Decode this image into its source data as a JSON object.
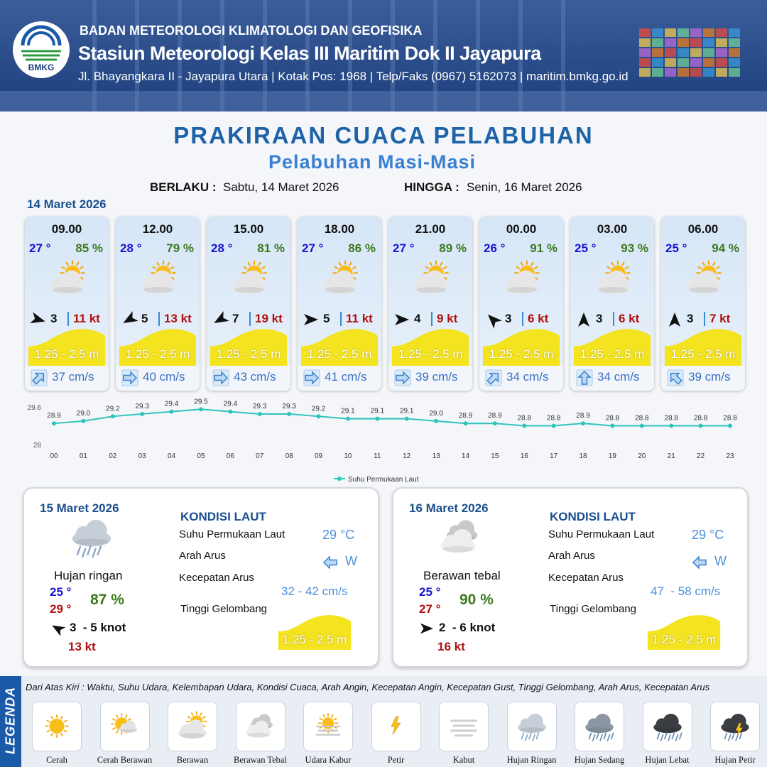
{
  "header": {
    "logo_text": "BMKG",
    "agency": "BADAN METEOROLOGI KLIMATOLOGI DAN GEOFISIKA",
    "station": "Stasiun Meteorologi Kelas III Maritim Dok II Jayapura",
    "address": "Jl. Bhayangkara II - Jayapura Utara | Kotak Pos: 1968 | Telp/Faks (0967) 5162073 | maritim.bmkg.go.id"
  },
  "title": "PRAKIRAAN CUACA PELABUHAN",
  "subtitle": "Pelabuhan Masi-Masi",
  "validity": {
    "from_label": "BERLAKU :",
    "from": "Sabtu, 14 Maret 2026",
    "to_label": "HINGGA :",
    "to": "Senin, 16 Maret 2026"
  },
  "day1": {
    "date": "14 Maret 2026",
    "cards": [
      {
        "time": "09.00",
        "temperature": "27 °",
        "humidity": "85 %",
        "wind_speed": "3",
        "gust": "11 kt",
        "wave": "1.25 - 2.5 m",
        "current": "37 cm/s"
      },
      {
        "time": "12.00",
        "temperature": "28 °",
        "humidity": "79 %",
        "wind_speed": "5",
        "gust": "13 kt",
        "wave": "1.25 - 2.5 m",
        "current": "40 cm/s"
      },
      {
        "time": "15.00",
        "temperature": "28 °",
        "humidity": "81 %",
        "wind_speed": "7",
        "gust": "19 kt",
        "wave": "1.25 - 2.5 m",
        "current": "43 cm/s"
      },
      {
        "time": "18.00",
        "temperature": "27 °",
        "humidity": "86 %",
        "wind_speed": "5",
        "gust": "11 kt",
        "wave": "1.25 - 2.5 m",
        "current": "41 cm/s"
      },
      {
        "time": "21.00",
        "temperature": "27 °",
        "humidity": "89 %",
        "wind_speed": "4",
        "gust": "9 kt",
        "wave": "1.25 - 2.5 m",
        "current": "39 cm/s"
      },
      {
        "time": "00.00",
        "temperature": "26 °",
        "humidity": "91 %",
        "wind_speed": "3",
        "gust": "6 kt",
        "wave": "1.25 - 2.5 m",
        "current": "34 cm/s"
      },
      {
        "time": "03.00",
        "temperature": "25 °",
        "humidity": "93 %",
        "wind_speed": "3",
        "gust": "6 kt",
        "wave": "1.25 - 2.5 m",
        "current": "34 cm/s"
      },
      {
        "time": "06.00",
        "temperature": "25 °",
        "humidity": "94 %",
        "wind_speed": "3",
        "gust": "7 kt",
        "wave": "1.25 - 2.5 m",
        "current": "39 cm/s"
      }
    ]
  },
  "chart_data": {
    "type": "line",
    "categories": [
      "00",
      "01",
      "02",
      "03",
      "04",
      "05",
      "06",
      "07",
      "08",
      "09",
      "10",
      "11",
      "12",
      "13",
      "14",
      "15",
      "16",
      "17",
      "18",
      "19",
      "20",
      "21",
      "22",
      "23"
    ],
    "series": [
      {
        "name": "Suhu Permukaan Laut",
        "color": "#2ec4bc",
        "values": [
          28.9,
          29.0,
          29.2,
          29.3,
          29.4,
          29.5,
          29.4,
          29.3,
          29.3,
          29.2,
          29.1,
          29.1,
          29.1,
          29.0,
          28.9,
          28.9,
          28.8,
          28.8,
          28.9,
          28.8,
          28.8,
          28.8,
          28.8,
          28.8
        ],
        "value_labels": [
          "28.9",
          "29.0",
          "29.2",
          "29.3",
          "29.4",
          "29.5",
          "29.4",
          "29.3",
          "29.3",
          "29.2",
          "29.1",
          "29.1",
          "29.1",
          "29.0",
          "28.9",
          "28.9",
          "28.8",
          "28.8",
          "28.9",
          "28.8",
          "28.8",
          "28.8",
          "28.8",
          "28.8"
        ]
      }
    ],
    "ylim": [
      28,
      29.6
    ],
    "yticks": [
      28,
      29.6
    ]
  },
  "days": [
    {
      "date": "15 Maret 2026",
      "condition": "Hujan ringan",
      "temp_min": "25 °",
      "temp_max": "29 °",
      "humidity": "87 %",
      "wind": "3  - 5 knot",
      "gust": "13 kt",
      "sea": {
        "title": "KONDISI LAUT",
        "sst_label": "Suhu Permukaan Laut",
        "sst": "29 °C",
        "current_dir_label": "Arah Arus",
        "current_dir": "W",
        "current_speed_label": "Kecepatan Arus",
        "current_speed": "32 - 42 cm/s",
        "wave_label": "Tinggi Gelombang",
        "wave": "1.25 - 2.5 m"
      }
    },
    {
      "date": "16 Maret 2026",
      "condition": "Berawan tebal",
      "temp_min": "25 °",
      "temp_max": "27 °",
      "humidity": "90 %",
      "wind": "2  - 6 knot",
      "gust": "16 kt",
      "sea": {
        "title": "KONDISI LAUT",
        "sst_label": "Suhu Permukaan Laut",
        "sst": "29 °C",
        "current_dir_label": "Arah Arus",
        "current_dir": "W",
        "current_speed_label": "Kecepatan Arus",
        "current_speed": "47  - 58 cm/s",
        "wave_label": "Tinggi Gelombang",
        "wave": "1.25 - 2.5 m"
      }
    }
  ],
  "legend": {
    "title": "LEGENDA",
    "description": "Dari Atas Kiri : Waktu, Suhu Udara, Kelembapan Udara, Kondisi Cuaca, Arah Angin, Kecepatan Angin, Kecepatan Gust, Tinggi Gelombang, Arah Arus, Kecepatan Arus",
    "items": [
      "Cerah",
      "Cerah Berawan",
      "Berawan",
      "Berawan Tebal",
      "Udara Kabur",
      "Petir",
      "Kabut",
      "Hujan Ringan",
      "Hujan Sedang",
      "Hujan Lebat",
      "Hujan Petir"
    ]
  }
}
